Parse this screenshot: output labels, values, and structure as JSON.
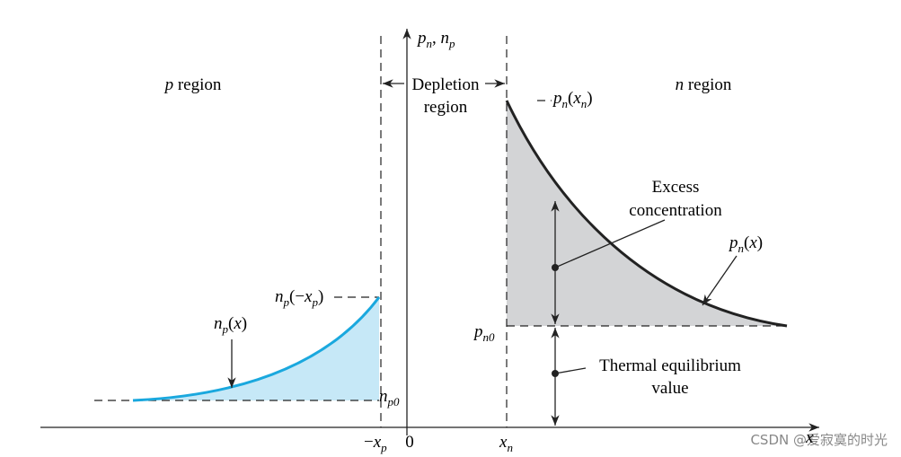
{
  "labels": [
    {
      "parts": [
        {
          "text": "p",
          "style": "italic"
        },
        {
          "text": "n",
          "style": "sub"
        },
        {
          "text": ", ",
          "style": "roman"
        },
        {
          "text": "n",
          "style": "italic"
        },
        {
          "text": "p",
          "style": "sub"
        }
      ]
    },
    {
      "parts": [
        {
          "text": "p",
          "style": "italic"
        },
        {
          "text": " region",
          "style": "roman"
        }
      ]
    },
    {
      "parts": [
        {
          "text": "Depletion",
          "style": "roman"
        }
      ]
    },
    {
      "parts": [
        {
          "text": "region",
          "style": "roman"
        }
      ]
    },
    {
      "parts": [
        {
          "text": "n",
          "style": "italic"
        },
        {
          "text": " region",
          "style": "roman"
        }
      ]
    },
    {
      "parts": [
        {
          "text": "p",
          "style": "italic"
        },
        {
          "text": "n",
          "style": "sub"
        },
        {
          "text": "(",
          "style": "roman"
        },
        {
          "text": "x",
          "style": "italic"
        },
        {
          "text": "n",
          "style": "sub"
        },
        {
          "text": ")",
          "style": "roman"
        }
      ]
    },
    {
      "parts": [
        {
          "text": "Excess",
          "style": "roman"
        }
      ]
    },
    {
      "parts": [
        {
          "text": "concentration",
          "style": "roman"
        }
      ]
    },
    {
      "parts": [
        {
          "text": "p",
          "style": "italic"
        },
        {
          "text": "n",
          "style": "sub"
        },
        {
          "text": "(",
          "style": "roman"
        },
        {
          "text": "x",
          "style": "italic"
        },
        {
          "text": ")",
          "style": "roman"
        }
      ]
    },
    {
      "parts": [
        {
          "text": "p",
          "style": "italic"
        },
        {
          "text": "n0",
          "style": "sub"
        }
      ]
    },
    {
      "parts": [
        {
          "text": "Thermal equilibrium",
          "style": "roman"
        }
      ]
    },
    {
      "parts": [
        {
          "text": "value",
          "style": "roman"
        }
      ]
    },
    {
      "parts": [
        {
          "text": "n",
          "style": "italic"
        },
        {
          "text": "p",
          "style": "sub"
        },
        {
          "text": "(−",
          "style": "roman"
        },
        {
          "text": "x",
          "style": "italic"
        },
        {
          "text": "p",
          "style": "sub"
        },
        {
          "text": ")",
          "style": "roman"
        }
      ]
    },
    {
      "parts": [
        {
          "text": "n",
          "style": "italic"
        },
        {
          "text": "p",
          "style": "sub"
        },
        {
          "text": "(",
          "style": "roman"
        },
        {
          "text": "x",
          "style": "italic"
        },
        {
          "text": ")",
          "style": "roman"
        }
      ]
    },
    {
      "parts": [
        {
          "text": "n",
          "style": "italic"
        },
        {
          "text": "p0",
          "style": "sub"
        }
      ]
    },
    {
      "parts": [
        {
          "text": "−",
          "style": "roman"
        },
        {
          "text": "x",
          "style": "italic"
        },
        {
          "text": "p",
          "style": "sub"
        }
      ]
    },
    {
      "parts": [
        {
          "text": "0",
          "style": "roman"
        }
      ]
    },
    {
      "parts": [
        {
          "text": "x",
          "style": "italic"
        },
        {
          "text": "n",
          "style": "sub"
        }
      ]
    },
    {
      "parts": [
        {
          "text": "x",
          "style": "italic"
        }
      ]
    }
  ],
  "watermark": "CSDN @爱寂寞的时光"
}
